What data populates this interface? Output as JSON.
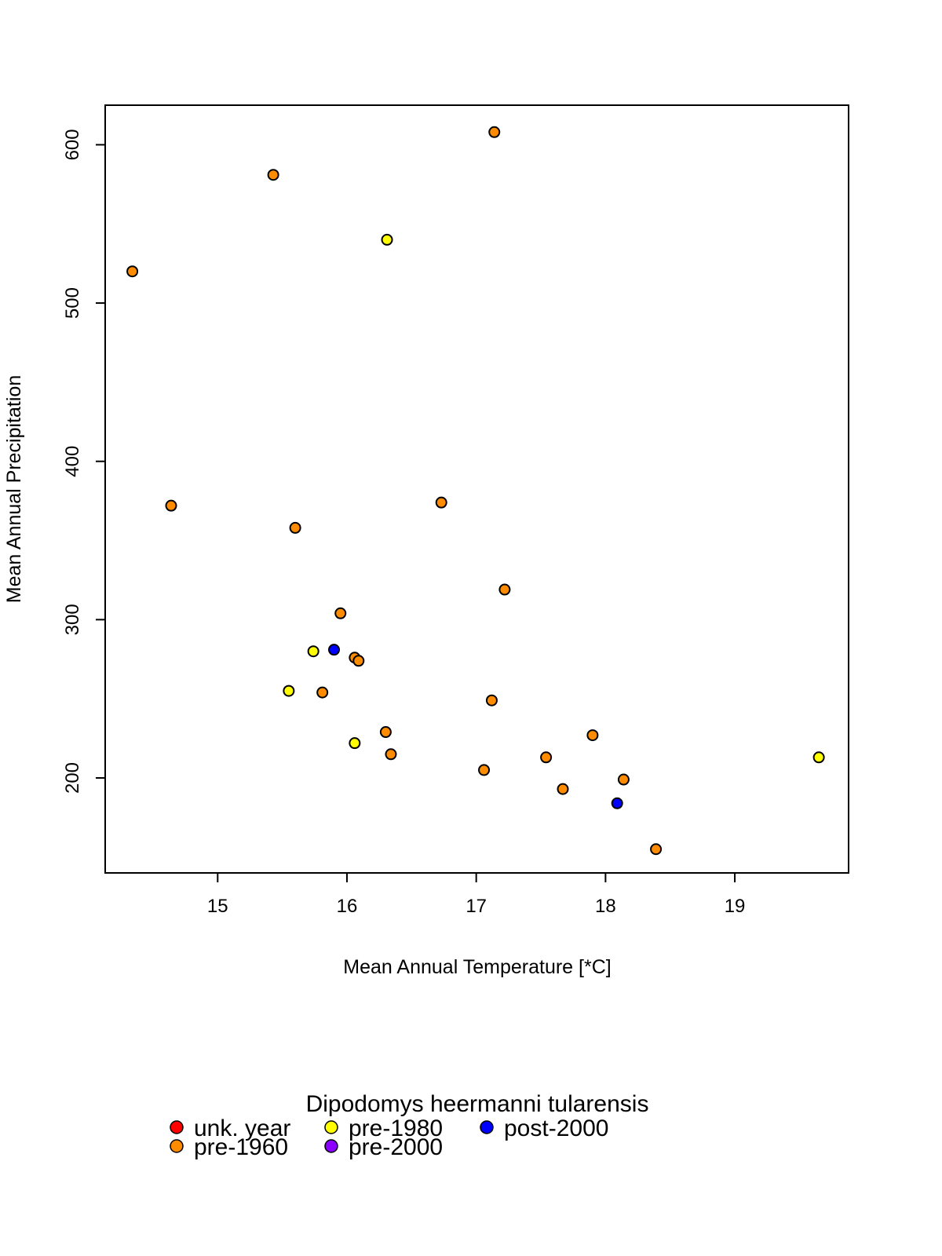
{
  "chart_data": {
    "type": "scatter",
    "xlabel": "Mean Annual Temperature [*C]",
    "ylabel": "Mean Annual Precipitation",
    "xlim": [
      14.13,
      19.88
    ],
    "ylim": [
      140,
      625
    ],
    "xticks": [
      15,
      16,
      17,
      18,
      19
    ],
    "yticks": [
      200,
      300,
      400,
      500,
      600
    ],
    "grid": false,
    "legend": {
      "title": "Dipodomys heermanni tularensis",
      "placement": "bottom",
      "entries": [
        {
          "name": "unk. year",
          "color": "#ff0000"
        },
        {
          "name": "pre-1960",
          "color": "#ff8c00"
        },
        {
          "name": "pre-1980",
          "color": "#ffff00"
        },
        {
          "name": "pre-2000",
          "color": "#8b00ff"
        },
        {
          "name": "post-2000",
          "color": "#0000ff"
        }
      ]
    },
    "series": [
      {
        "name": "pre-1960",
        "color": "#ff8c00",
        "points": [
          [
            14.34,
            520
          ],
          [
            15.43,
            581
          ],
          [
            17.14,
            608
          ],
          [
            14.64,
            372
          ],
          [
            15.6,
            358
          ],
          [
            16.73,
            374
          ],
          [
            17.22,
            319
          ],
          [
            15.95,
            304
          ],
          [
            16.06,
            276
          ],
          [
            16.09,
            274
          ],
          [
            15.81,
            254
          ],
          [
            17.12,
            249
          ],
          [
            16.3,
            229
          ],
          [
            16.34,
            215
          ],
          [
            17.06,
            205
          ],
          [
            17.54,
            213
          ],
          [
            17.67,
            193
          ],
          [
            17.9,
            227
          ],
          [
            18.14,
            199
          ],
          [
            18.39,
            155
          ]
        ]
      },
      {
        "name": "pre-1980",
        "color": "#ffff00",
        "points": [
          [
            16.31,
            540
          ],
          [
            15.74,
            280
          ],
          [
            15.55,
            255
          ],
          [
            16.06,
            222
          ],
          [
            19.65,
            213
          ]
        ]
      },
      {
        "name": "post-2000",
        "color": "#0000ff",
        "points": [
          [
            15.9,
            281
          ],
          [
            18.09,
            184
          ]
        ]
      }
    ]
  }
}
